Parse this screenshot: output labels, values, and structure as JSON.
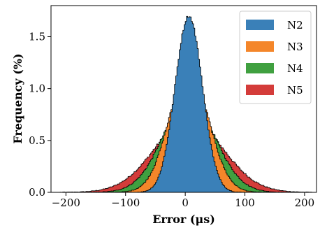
{
  "chart_data": {
    "type": "area",
    "title": "",
    "xlabel": "Error (μs)",
    "ylabel": "Frequency (%)",
    "xlim": [
      -225,
      220
    ],
    "ylim": [
      0,
      1.8
    ],
    "xticks": [
      -200,
      -100,
      0,
      100,
      200
    ],
    "xtick_labels": [
      "−200",
      "−100",
      "0",
      "100",
      "200"
    ],
    "yticks": [
      0.0,
      0.5,
      1.0,
      1.5
    ],
    "ytick_labels": [
      "0.0",
      "0.5",
      "1.0",
      "1.5"
    ],
    "grid": false,
    "legend": "top-right",
    "distribution": "histogram, approximately Gaussian, centered near 5 μs",
    "series": [
      {
        "name": "N2",
        "color": "#3a80b8",
        "peak": 1.7,
        "center": 5,
        "std": 23
      },
      {
        "name": "N3",
        "color": "#f4862a",
        "peak": 1.18,
        "center": 5,
        "std": 33
      },
      {
        "name": "N4",
        "color": "#40a040",
        "peak": 0.88,
        "center": 5,
        "std": 44
      },
      {
        "name": "N5",
        "color": "#d43c3a",
        "peak": 0.7,
        "center": 5,
        "std": 57
      }
    ]
  }
}
